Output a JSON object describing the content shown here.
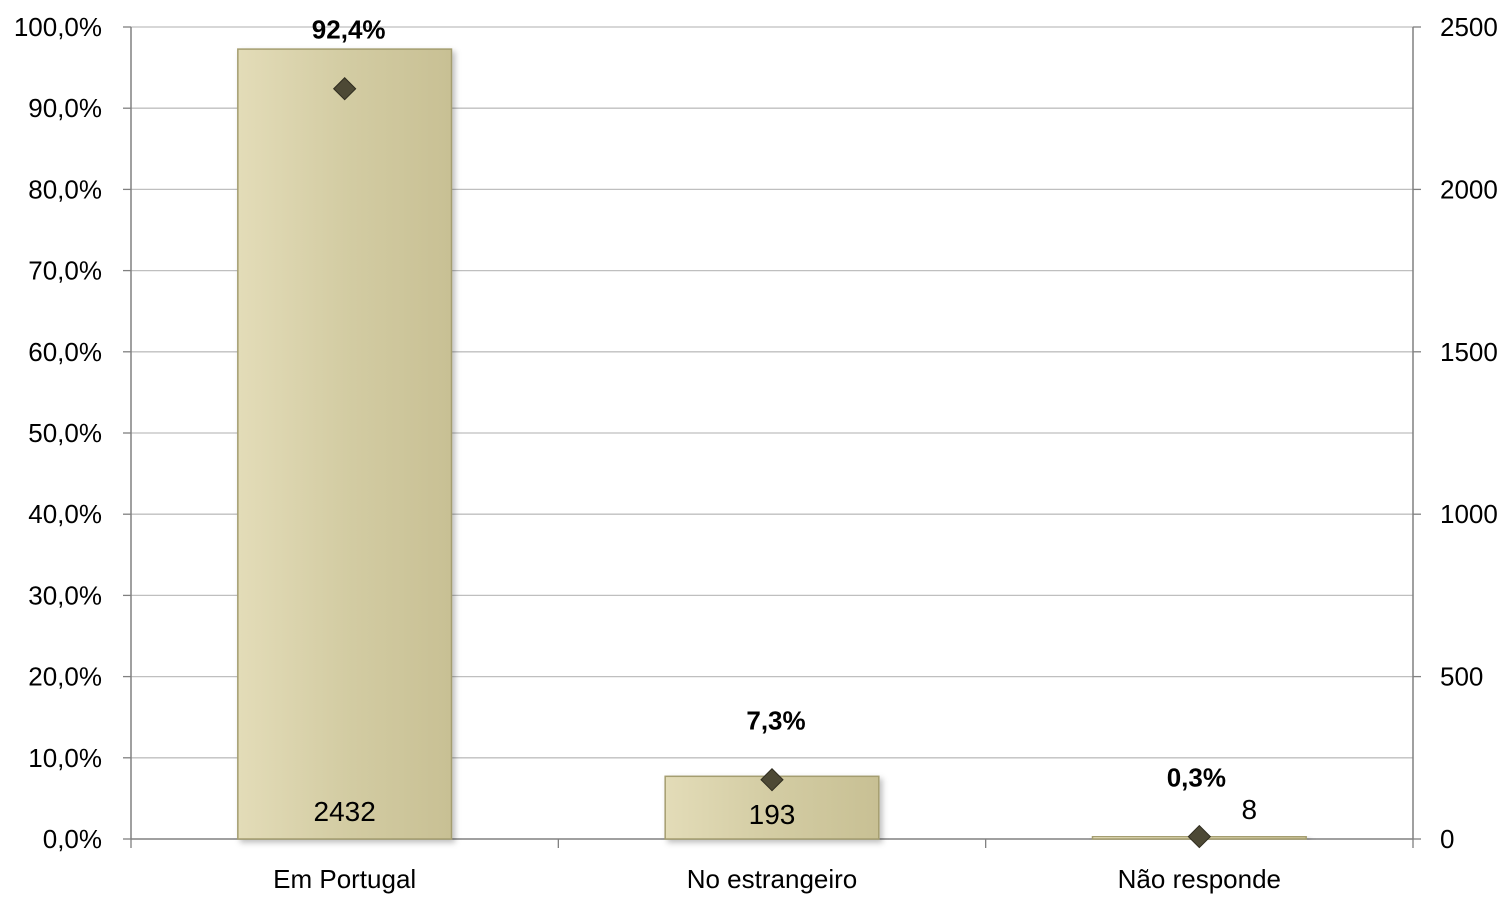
{
  "chart_data": {
    "type": "bar",
    "categories": [
      "Em Portugal",
      "No estrangeiro",
      "Não responde"
    ],
    "series": [
      {
        "axis": "right",
        "values": [
          2432,
          193,
          8
        ],
        "labels": [
          "2432",
          "193",
          "8"
        ]
      },
      {
        "axis": "left",
        "marker": "diamond",
        "values": [
          92.4,
          7.3,
          0.3
        ],
        "labels": [
          "92,4%",
          "7,3%",
          "0,3%"
        ]
      }
    ],
    "y_left": {
      "ylim": [
        0,
        100
      ],
      "tick_labels": [
        "0,0%",
        "10,0%",
        "20,0%",
        "30,0%",
        "40,0%",
        "50,0%",
        "60,0%",
        "70,0%",
        "80,0%",
        "90,0%",
        "100,0%"
      ]
    },
    "y_right": {
      "ylim": [
        0,
        2500
      ],
      "tick_labels": [
        "0",
        "500",
        "1000",
        "1500",
        "2000",
        "2500"
      ]
    },
    "grid": true,
    "colors": {
      "bar_fill": "#d3cca3",
      "bar_stroke": "#a49d6f",
      "marker": "#4d4935",
      "gridline": "#bfbfbf",
      "axis": "#808080"
    }
  }
}
